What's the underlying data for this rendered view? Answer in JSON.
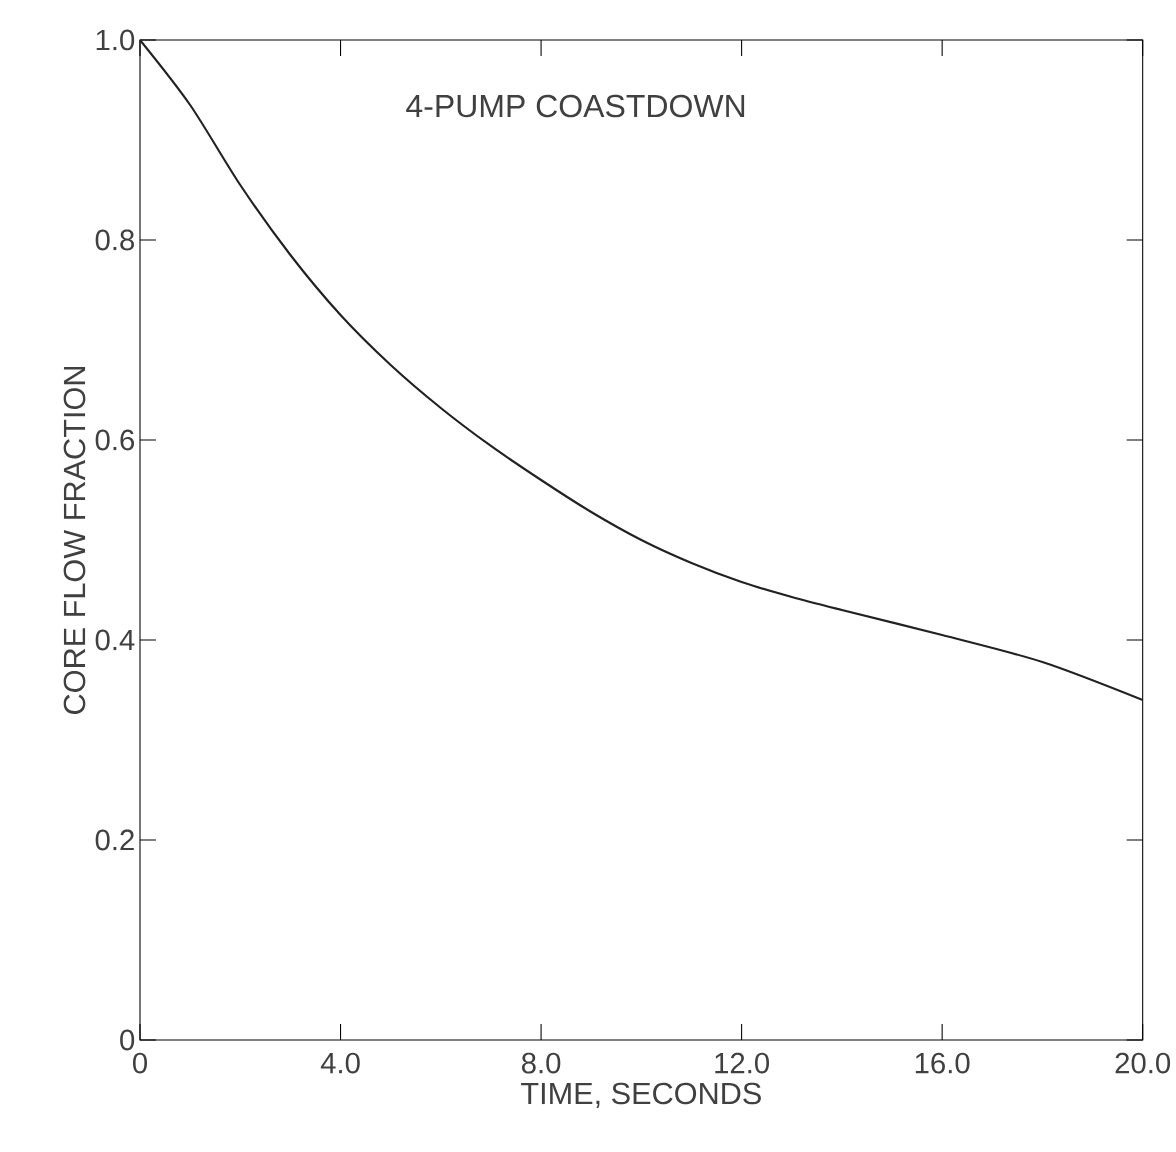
{
  "chart_data": {
    "type": "line",
    "xlabel": "TIME, SECONDS",
    "ylabel": "CORE FLOW FRACTION",
    "annotations": [
      "4-PUMP COASTDOWN"
    ],
    "x": [
      0,
      1,
      2,
      3,
      4,
      5,
      6,
      7,
      8,
      9,
      10,
      11,
      12,
      13,
      14,
      16,
      18,
      20
    ],
    "series": [
      {
        "color": "#222222",
        "values": [
          1.0,
          0.935,
          0.855,
          0.785,
          0.725,
          0.675,
          0.632,
          0.594,
          0.56,
          0.528,
          0.5,
          0.477,
          0.458,
          0.443,
          0.43,
          0.405,
          0.378,
          0.34
        ]
      }
    ],
    "xlim": [
      0,
      20
    ],
    "ylim": [
      0,
      1.0
    ],
    "xticks": [
      0,
      {
        "value": 4,
        "label": "4.0"
      },
      {
        "value": 8,
        "label": "8.0"
      },
      {
        "value": 12,
        "label": "12.0"
      },
      {
        "value": 16,
        "label": "16.0"
      },
      {
        "value": 20,
        "label": "20.0"
      }
    ],
    "yticks": [
      0,
      {
        "value": 0.2,
        "label": "0.2"
      },
      {
        "value": 0.4,
        "label": "0.4"
      },
      {
        "value": 0.6,
        "label": "0.6"
      },
      {
        "value": 0.8,
        "label": "0.8"
      },
      {
        "value": 1.0,
        "label": "1.0"
      }
    ],
    "marker": "none",
    "line_style": "solid"
  }
}
